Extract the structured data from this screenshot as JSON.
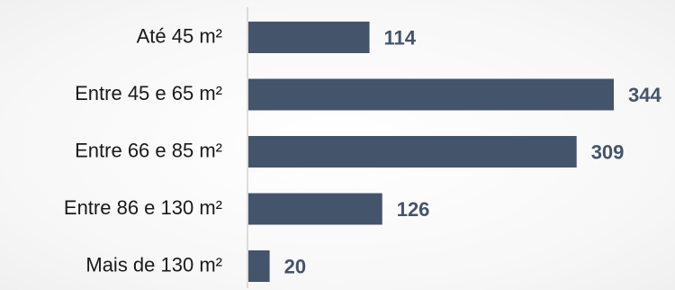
{
  "chart_data": {
    "type": "bar",
    "orientation": "horizontal",
    "categories": [
      "Até 45 m²",
      "Entre 45 e 65 m²",
      "Entre 66 e 85 m²",
      "Entre 86 e 130 m²",
      "Mais de 130 m²"
    ],
    "values": [
      114,
      344,
      309,
      126,
      20
    ],
    "value_labels": [
      "114",
      "344",
      "309",
      "126",
      "20"
    ],
    "bar_color": "#44546a",
    "label_color": "#44546a",
    "title": "",
    "xlabel": "",
    "ylabel": "",
    "xlim": [
      0,
      344
    ],
    "grid": false,
    "legend": "none"
  }
}
